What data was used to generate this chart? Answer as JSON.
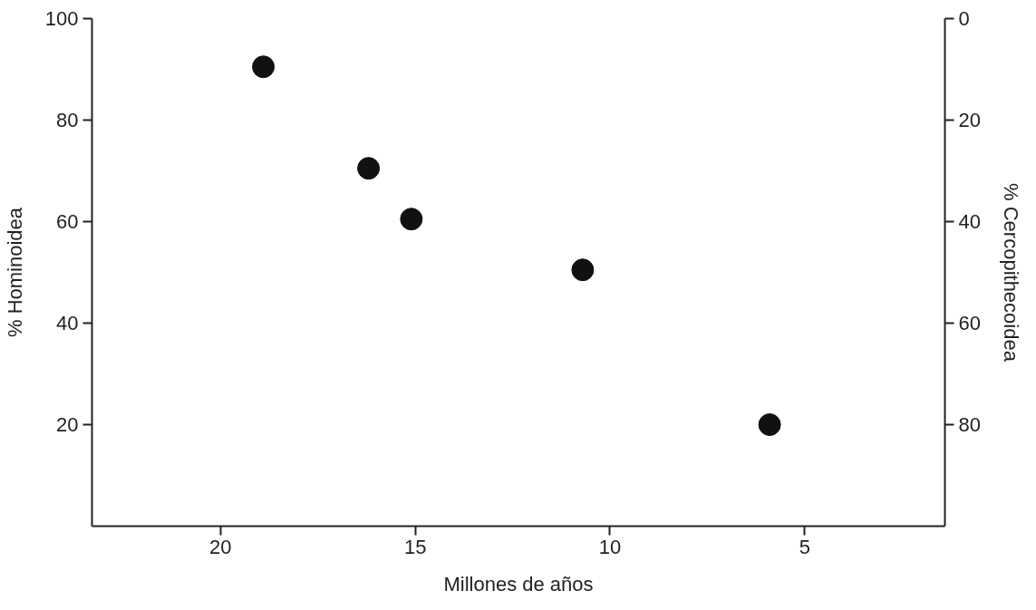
{
  "chart_data": {
    "type": "scatter",
    "xlabel": "Millones de años",
    "ylabel": "% Hominoidea",
    "y2label": "% Cercopithecoidea",
    "x": [
      18.9,
      16.2,
      15.1,
      10.7,
      5.9
    ],
    "series": [
      {
        "color": "#111111",
        "values": [
          90.5,
          70.5,
          60.5,
          50.5,
          20
        ]
      }
    ],
    "xlim": [
      23.3,
      1.4
    ],
    "xticks": [
      20,
      15,
      10,
      5
    ],
    "ylim": [
      0,
      100
    ],
    "yticks": [
      20,
      40,
      60,
      80,
      100
    ],
    "y2lim": [
      100,
      0
    ],
    "y2ticks": [
      0,
      20,
      40,
      60,
      80
    ],
    "marker": "circle",
    "grid": false
  }
}
